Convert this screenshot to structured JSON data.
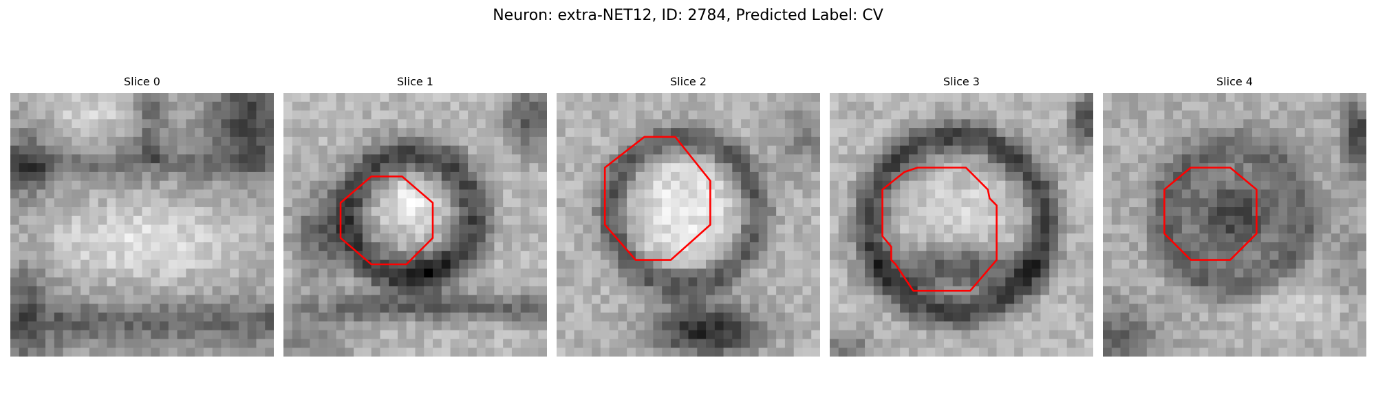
{
  "figure": {
    "title": "Neuron: extra-NET12, ID: 2784, Predicted Label: CV"
  },
  "panels": [
    {
      "title": "Slice 0",
      "has_contour": false
    },
    {
      "title": "Slice 1",
      "has_contour": true
    },
    {
      "title": "Slice 2",
      "has_contour": true
    },
    {
      "title": "Slice 3",
      "has_contour": true
    },
    {
      "title": "Slice 4",
      "has_contour": true
    }
  ],
  "colors": {
    "contour": "#ff0000",
    "background": "#ffffff"
  },
  "colormap": "grayscale"
}
